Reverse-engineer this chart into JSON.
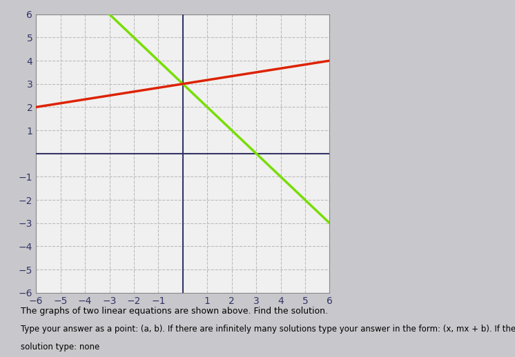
{
  "xlim": [
    -6,
    6
  ],
  "ylim": [
    -6,
    6
  ],
  "line_green": {
    "slope": -1.0,
    "intercept": 3.0,
    "color": "#77dd00",
    "linewidth": 2.5
  },
  "line_red": {
    "slope": 0.1667,
    "intercept": 3.0,
    "color": "#dd2200",
    "linewidth": 2.5
  },
  "grid_color": "#bbbbbb",
  "grid_style": "--",
  "plot_bg": "#f0f0f0",
  "axis_color": "#333366",
  "tick_fontsize": 10,
  "outer_bg": "#c8c8cc",
  "text1": "The graphs of two linear equations are shown above. Find the solution.",
  "text2": "Type your answer as a point: (a, b). If there are infinitely many solutions type your answer in the form: (x, mx + b). If there is no",
  "text3": "solution type: none"
}
